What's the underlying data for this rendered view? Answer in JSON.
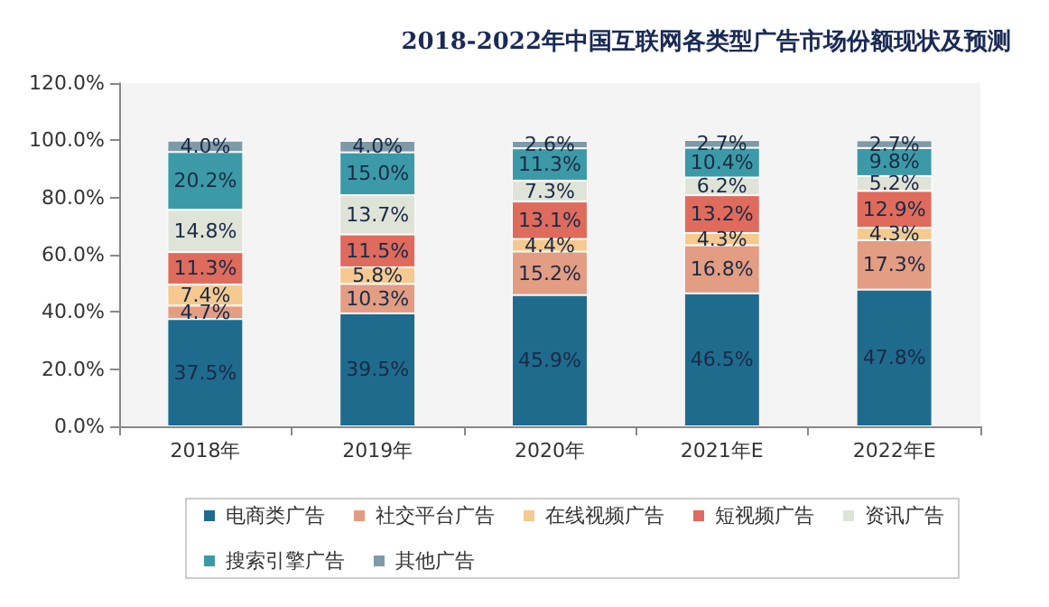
{
  "chart_data": {
    "type": "bar",
    "title": "2018-2022年中国互联网各类型广告市场份额现状及预测",
    "stacked": true,
    "categories": [
      "2018年",
      "2019年",
      "2020年",
      "2021年E",
      "2022年E"
    ],
    "series": [
      {
        "name": "电商类广告",
        "color": "#1f6b8e",
        "values": [
          37.5,
          39.5,
          45.9,
          46.5,
          47.8
        ],
        "value_labels": [
          "37.5%",
          "39.5%",
          "45.9%",
          "46.5%",
          "47.8%"
        ]
      },
      {
        "name": "社交平台广告",
        "color": "#e39d83",
        "values": [
          4.7,
          10.3,
          15.2,
          16.8,
          17.3
        ],
        "value_labels": [
          "4.7%",
          "10.3%",
          "15.2%",
          "16.8%",
          "17.3%"
        ]
      },
      {
        "name": "在线视频广告",
        "color": "#f5c98f",
        "values": [
          7.4,
          5.8,
          4.4,
          4.3,
          4.3
        ],
        "value_labels": [
          "7.4%",
          "5.8%",
          "4.4%",
          "4.3%",
          "4.3%"
        ]
      },
      {
        "name": "短视频广告",
        "color": "#df6b5d",
        "values": [
          11.3,
          11.5,
          13.1,
          13.2,
          12.9
        ],
        "value_labels": [
          "11.3%",
          "11.5%",
          "13.1%",
          "13.2%",
          "12.9%"
        ]
      },
      {
        "name": "资讯广告",
        "color": "#dfe3d8",
        "values": [
          14.8,
          13.7,
          7.3,
          6.2,
          5.2
        ],
        "value_labels": [
          "14.8%",
          "13.7%",
          "7.3%",
          "6.2%",
          "5.2%"
        ]
      },
      {
        "name": "搜索引擎广告",
        "color": "#3c9aa8",
        "values": [
          20.2,
          15.0,
          11.3,
          10.4,
          9.8
        ],
        "value_labels": [
          "20.2%",
          "15.0%",
          "11.3%",
          "10.4%",
          "9.8%"
        ]
      },
      {
        "name": "其他广告",
        "color": "#7f9aa7",
        "values": [
          4.0,
          4.0,
          2.6,
          2.7,
          2.7
        ],
        "value_labels": [
          "4.0%",
          "4.0%",
          "2.6%",
          "2.7%",
          "2.7%"
        ]
      }
    ],
    "ylim": [
      0,
      120
    ],
    "yticks": [
      {
        "value": 0,
        "label": "0.0%"
      },
      {
        "value": 20,
        "label": "20.0%"
      },
      {
        "value": 40,
        "label": "40.0%"
      },
      {
        "value": 60,
        "label": "60.0%"
      },
      {
        "value": 80,
        "label": "80.0%"
      },
      {
        "value": 100,
        "label": "100.0%"
      },
      {
        "value": 120,
        "label": "120.0%"
      }
    ],
    "grid": false,
    "legend": "bottom"
  }
}
